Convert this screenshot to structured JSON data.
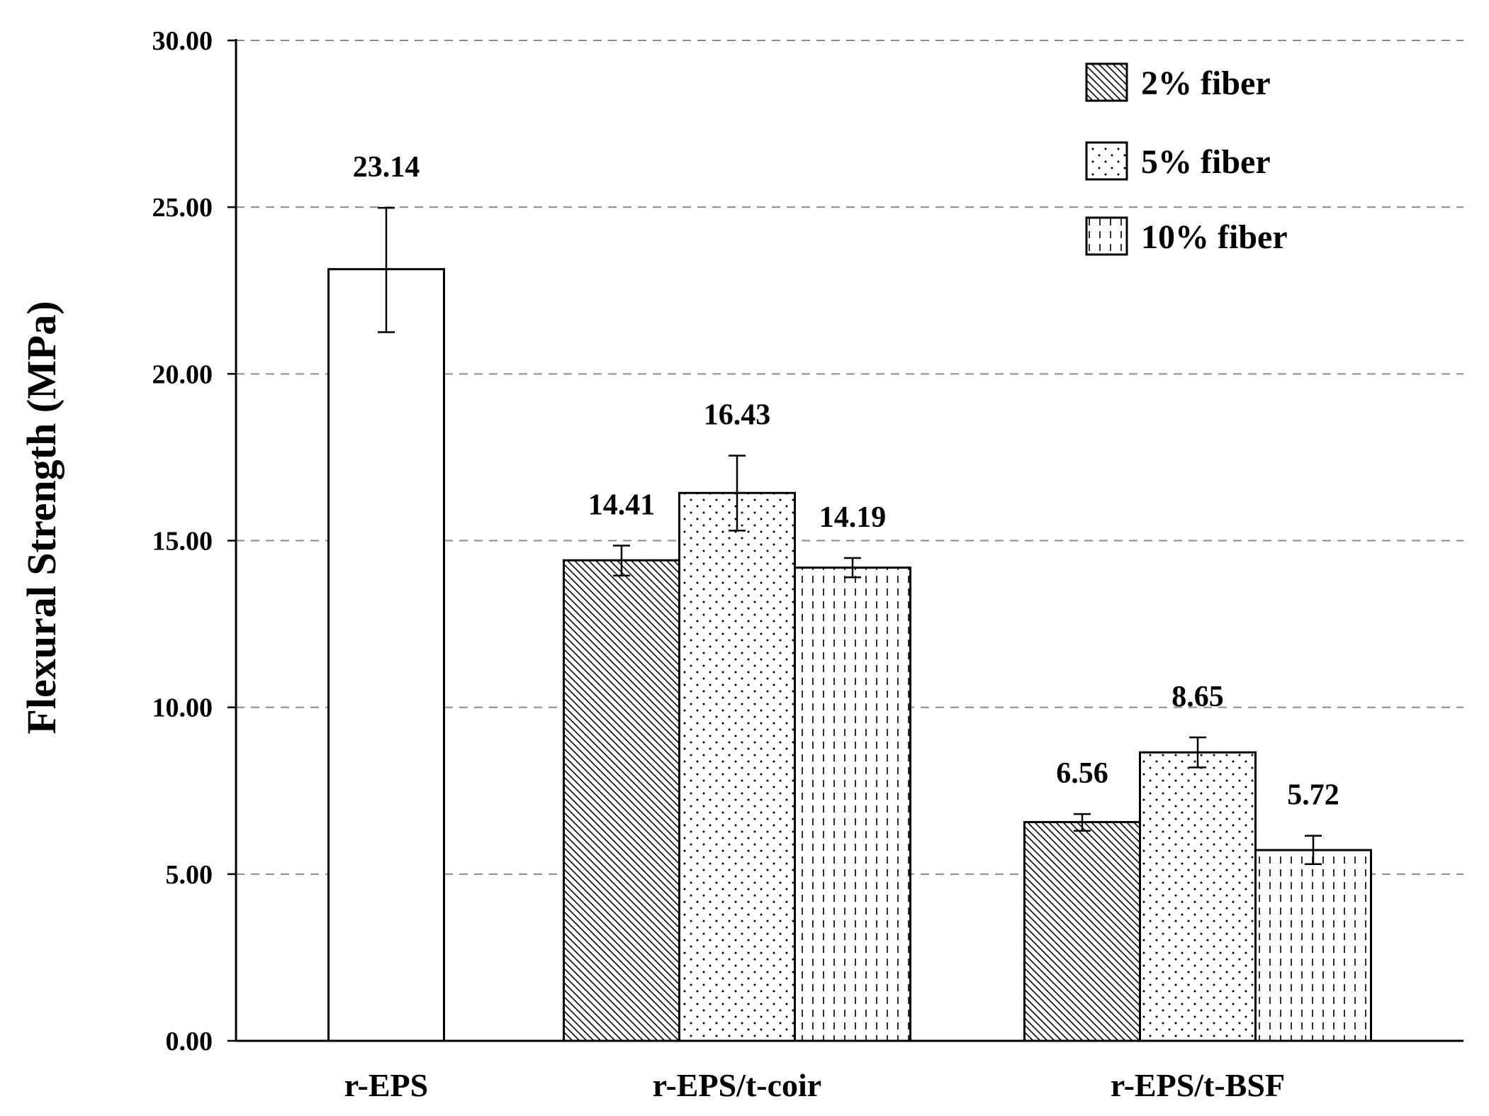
{
  "chart_data": {
    "type": "bar",
    "ylabel": "Flexural Strength (MPa)",
    "ylim": [
      0,
      30
    ],
    "yticks": [
      "0.00",
      "5.00",
      "10.00",
      "15.00",
      "20.00",
      "25.00",
      "30.00"
    ],
    "grid": "horizontal-dashed",
    "legend_position": "top-right",
    "categories": [
      "r-EPS",
      "r-EPS/t-coir",
      "r-EPS/t-BSF"
    ],
    "legend": [
      {
        "label": "2% fiber",
        "pattern": "diagonal-hatch"
      },
      {
        "label": "5% fiber",
        "pattern": "dots"
      },
      {
        "label": "10% fiber",
        "pattern": "dashed-vertical"
      }
    ],
    "bars": [
      {
        "category": "r-EPS",
        "series": "none",
        "pattern": "none",
        "value": 23.14,
        "label": "23.14",
        "err_low": 21.25,
        "err_high": 24.98
      },
      {
        "category": "r-EPS/t-coir",
        "series": "2% fiber",
        "pattern": "diagonal-hatch",
        "value": 14.41,
        "label": "14.41",
        "err_low": 13.95,
        "err_high": 14.85
      },
      {
        "category": "r-EPS/t-coir",
        "series": "5% fiber",
        "pattern": "dots",
        "value": 16.43,
        "label": "16.43",
        "err_low": 15.3,
        "err_high": 17.55
      },
      {
        "category": "r-EPS/t-coir",
        "series": "10% fiber",
        "pattern": "dashed-vertical",
        "value": 14.19,
        "label": "14.19",
        "err_low": 13.9,
        "err_high": 14.48
      },
      {
        "category": "r-EPS/t-BSF",
        "series": "2% fiber",
        "pattern": "diagonal-hatch",
        "value": 6.56,
        "label": "6.56",
        "err_low": 6.3,
        "err_high": 6.8
      },
      {
        "category": "r-EPS/t-BSF",
        "series": "5% fiber",
        "pattern": "dots",
        "value": 8.65,
        "label": "8.65",
        "err_low": 8.2,
        "err_high": 9.1
      },
      {
        "category": "r-EPS/t-BSF",
        "series": "10% fiber",
        "pattern": "dashed-vertical",
        "value": 5.72,
        "label": "5.72",
        "err_low": 5.3,
        "err_high": 6.15
      }
    ]
  }
}
